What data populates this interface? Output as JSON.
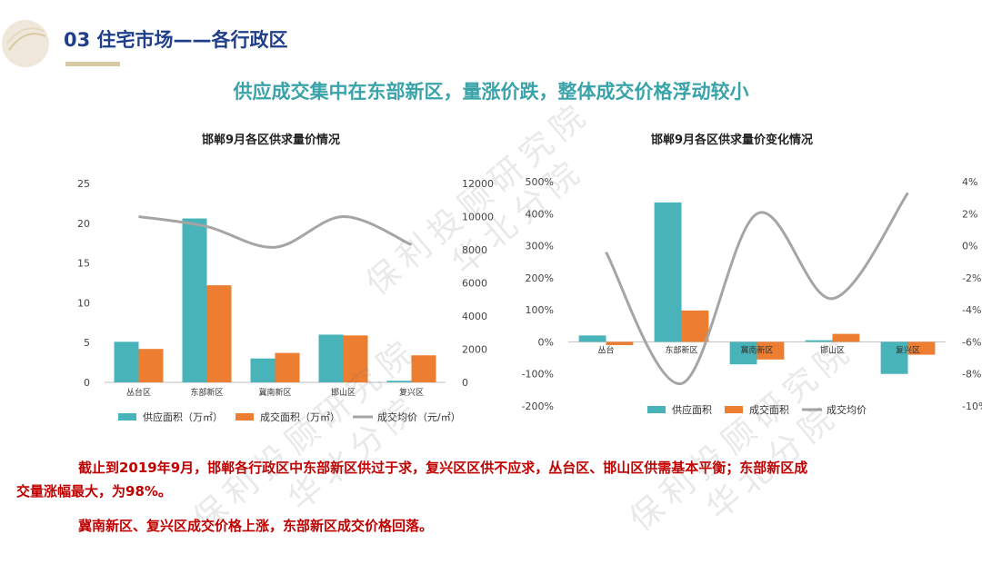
{
  "header": {
    "title": "03 住宅市场——各行政区"
  },
  "headline": "供应成交集中在东部新区，量涨价跌，整体成交价格浮动较小",
  "colors": {
    "supply": "#48b3b8",
    "deal": "#ed7d31",
    "price": "#a5a5a5",
    "title": "#1f3f8a",
    "headline": "#3aa3a9",
    "text_red": "#c00000"
  },
  "chart_data": [
    {
      "type": "bar",
      "title": "邯郸9月各区供求量价情况",
      "categories": [
        "丛台区",
        "东部新区",
        "冀南新区",
        "邯山区",
        "复兴区"
      ],
      "yticks_left": [
        "0",
        "5",
        "10",
        "15",
        "20",
        "25"
      ],
      "yticks_right": [
        "0",
        "2000",
        "4000",
        "6000",
        "8000",
        "10000",
        "12000"
      ],
      "ylim_left": [
        0,
        25
      ],
      "ylim_right": [
        0,
        12000
      ],
      "series": [
        {
          "name": "供应面积（万㎡）",
          "type": "bar",
          "axis": "left",
          "values": [
            5.1,
            20.6,
            3.0,
            6.0,
            0.2
          ]
        },
        {
          "name": "成交面积（万㎡）",
          "type": "bar",
          "axis": "left",
          "values": [
            4.2,
            12.2,
            3.7,
            5.9,
            3.4
          ]
        },
        {
          "name": "成交均价（元/㎡）",
          "type": "line",
          "axis": "right",
          "values": [
            10000,
            9400,
            8150,
            10000,
            8300
          ]
        }
      ]
    },
    {
      "type": "bar",
      "title": "邯郸9月各区供求量价变化情况",
      "categories": [
        "丛台",
        "东部新区",
        "冀南新区",
        "邯山区",
        "复兴区"
      ],
      "yticks_left": [
        "-200%",
        "-100%",
        "0%",
        "100%",
        "200%",
        "300%",
        "400%",
        "500%"
      ],
      "yticks_right": [
        "-10%",
        "-8%",
        "-6%",
        "-4%",
        "-2%",
        "0%",
        "2%",
        "4%"
      ],
      "ylim_left": [
        -200,
        500
      ],
      "ylim_right": [
        -10,
        4
      ],
      "series": [
        {
          "name": "供应面积",
          "type": "bar",
          "axis": "left",
          "values": [
            20,
            435,
            -70,
            5,
            -100
          ]
        },
        {
          "name": "成交面积",
          "type": "bar",
          "axis": "left",
          "values": [
            -10,
            98,
            -55,
            25,
            -40
          ]
        },
        {
          "name": "成交均价",
          "type": "line",
          "axis": "right",
          "values": [
            -0.4,
            -8.6,
            2.0,
            -3.3,
            3.3
          ]
        }
      ]
    }
  ],
  "text": {
    "line1": "截止到2019年9月，邯郸各行政区中东部新区供过于求，复兴区区供不应求，丛台区、邯山区供需基本平衡；东部新区成",
    "line2": "交量涨幅最大，为98%。",
    "line3": "冀南新区、复兴区成交价格上涨，东部新区成交价格回落。"
  },
  "watermark": {
    "line1": "保利投顾研究院",
    "line2": "华北分院"
  }
}
